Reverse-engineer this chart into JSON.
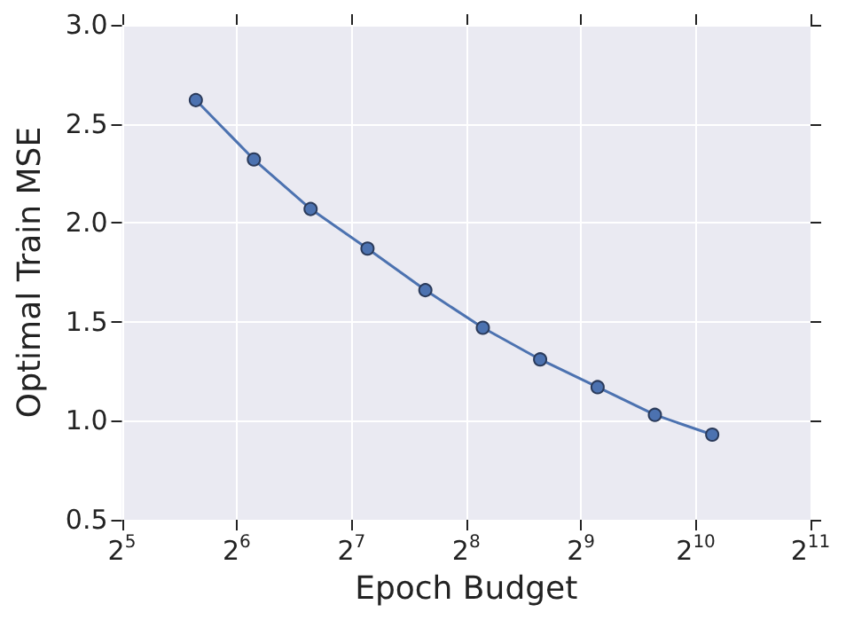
{
  "chart_data": {
    "type": "line",
    "xlabel": "Epoch Budget",
    "ylabel": "Optimal Train MSE",
    "x": [
      50,
      71,
      100,
      141,
      200,
      283,
      400,
      566,
      800,
      1131
    ],
    "series": [
      {
        "color": "#4c72b0",
        "values": [
          2.62,
          2.32,
          2.07,
          1.87,
          1.66,
          1.47,
          1.31,
          1.17,
          1.03,
          0.93
        ]
      }
    ],
    "log": "x",
    "xlim": [
      32,
      2048
    ],
    "xticks": [
      {
        "value": 32,
        "label": "2$^{5}$"
      },
      {
        "value": 64,
        "label": "2$^{6}$"
      },
      {
        "value": 128,
        "label": "2$^{7}$"
      },
      {
        "value": 256,
        "label": "2$^{8}$"
      },
      {
        "value": 512,
        "label": "2$^{9}$"
      },
      {
        "value": 1024,
        "label": "2$^{10}$"
      },
      {
        "value": 2048,
        "label": "2$^{11}$"
      }
    ],
    "ylim": [
      0.5,
      3.0
    ],
    "yticks": [
      {
        "value": 0.5,
        "label": "0.5"
      },
      {
        "value": 1.0,
        "label": "1.0"
      },
      {
        "value": 1.5,
        "label": "1.5"
      },
      {
        "value": 2.0,
        "label": "2.0"
      },
      {
        "value": 2.5,
        "label": "2.5"
      },
      {
        "value": 3.0,
        "label": "3.0"
      }
    ],
    "grid": true,
    "marker": "circle",
    "line_style": "solid"
  }
}
